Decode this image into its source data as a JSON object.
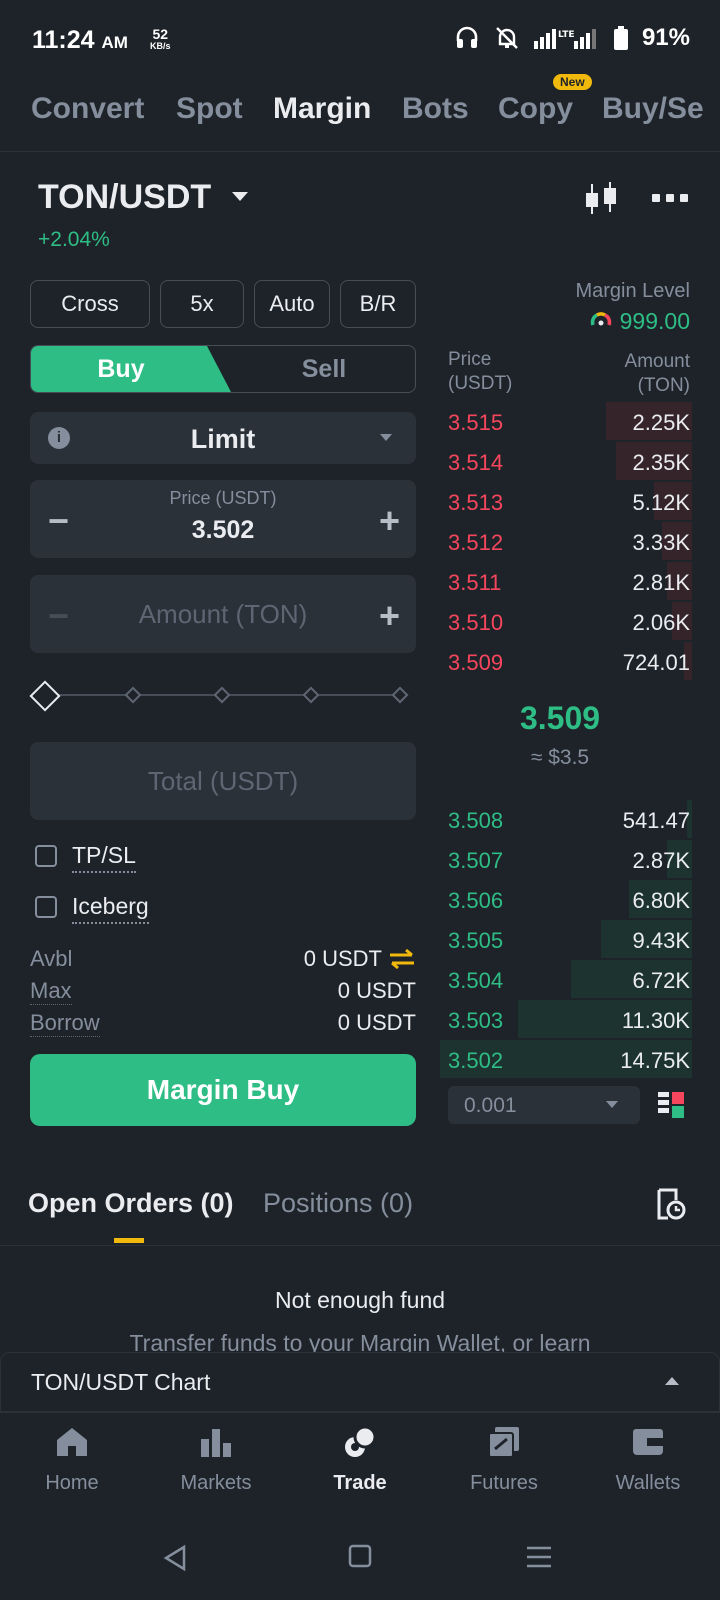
{
  "status_bar": {
    "time": "11:24",
    "ampm": "AM",
    "speed_value": "52",
    "speed_unit": "KB/s",
    "battery": "91%"
  },
  "top_tabs": [
    {
      "label": "Convert"
    },
    {
      "label": "Spot"
    },
    {
      "label": "Margin",
      "active": true
    },
    {
      "label": "Bots"
    },
    {
      "label": "Copy",
      "badge": "New"
    },
    {
      "label": "Buy/Se"
    }
  ],
  "pair": {
    "symbol": "TON/USDT",
    "change": "+2.04%"
  },
  "mode_buttons": [
    "Cross",
    "5x",
    "Auto",
    "B/R"
  ],
  "margin_level": {
    "label": "Margin Level",
    "value": "999.00"
  },
  "side": {
    "buy": "Buy",
    "sell": "Sell"
  },
  "order_type": "Limit",
  "price": {
    "label": "Price (USDT)",
    "value": "3.502"
  },
  "amount": {
    "placeholder": "Amount (TON)"
  },
  "total": {
    "placeholder": "Total (USDT)"
  },
  "options": {
    "tpsl": "TP/SL",
    "iceberg": "Iceberg"
  },
  "balances": {
    "avbl_label": "Avbl",
    "avbl_value": "0 USDT",
    "max_label": "Max",
    "max_value": "0 USDT",
    "borrow_label": "Borrow",
    "borrow_value": "0 USDT"
  },
  "submit_label": "Margin Buy",
  "order_book": {
    "price_header": "Price\n(USDT)",
    "amount_header": "Amount\n(TON)",
    "asks": [
      {
        "price": "3.515",
        "amount": "2.25K",
        "depth": 0.34
      },
      {
        "price": "3.514",
        "amount": "2.35K",
        "depth": 0.3
      },
      {
        "price": "3.513",
        "amount": "5.12K",
        "depth": 0.15
      },
      {
        "price": "3.512",
        "amount": "3.33K",
        "depth": 0.12
      },
      {
        "price": "3.511",
        "amount": "2.81K",
        "depth": 0.1
      },
      {
        "price": "3.510",
        "amount": "2.06K",
        "depth": 0.08
      },
      {
        "price": "3.509",
        "amount": "724.01",
        "depth": 0.03
      }
    ],
    "mid_price": "3.509",
    "mid_usd": "≈ $3.5",
    "bids": [
      {
        "price": "3.508",
        "amount": "541.47",
        "depth": 0.02
      },
      {
        "price": "3.507",
        "amount": "2.87K",
        "depth": 0.1
      },
      {
        "price": "3.506",
        "amount": "6.80K",
        "depth": 0.25
      },
      {
        "price": "3.505",
        "amount": "9.43K",
        "depth": 0.36
      },
      {
        "price": "3.504",
        "amount": "6.72K",
        "depth": 0.48
      },
      {
        "price": "3.503",
        "amount": "11.30K",
        "depth": 0.69
      },
      {
        "price": "3.502",
        "amount": "14.75K",
        "depth": 1.0
      }
    ],
    "tick_size": "0.001"
  },
  "order_tabs": {
    "open": "Open Orders (0)",
    "positions": "Positions (0)"
  },
  "empty_state": {
    "title": "Not enough fund",
    "subtitle": "Transfer funds to your Margin Wallet, or learn"
  },
  "chart_bar": {
    "label": "TON/USDT Chart"
  },
  "bottom_nav": [
    {
      "label": "Home",
      "icon": "home-icon"
    },
    {
      "label": "Markets",
      "icon": "markets-icon"
    },
    {
      "label": "Trade",
      "icon": "trade-icon",
      "active": true
    },
    {
      "label": "Futures",
      "icon": "futures-icon"
    },
    {
      "label": "Wallets",
      "icon": "wallet-icon"
    }
  ],
  "colors": {
    "green": "#2ebd85",
    "red": "#f6465d",
    "yellow": "#f0b90b",
    "bg": "#1e2329",
    "panel": "#2b3139"
  }
}
